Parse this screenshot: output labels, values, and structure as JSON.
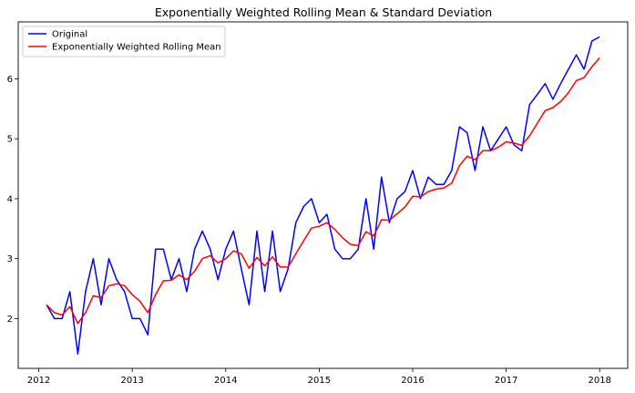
{
  "chart_data": {
    "type": "line",
    "title": "Exponentially Weighted Rolling Mean & Standard Deviation",
    "xlabel": "",
    "ylabel": "",
    "xlim": [
      2011.78,
      2018.3
    ],
    "ylim": [
      1.17,
      6.95
    ],
    "x_ticks": [
      {
        "value": 2012,
        "label": "2012"
      },
      {
        "value": 2013,
        "label": "2013"
      },
      {
        "value": 2014,
        "label": "2014"
      },
      {
        "value": 2015,
        "label": "2015"
      },
      {
        "value": 2016,
        "label": "2016"
      },
      {
        "value": 2017,
        "label": "2017"
      },
      {
        "value": 2018,
        "label": "2018"
      }
    ],
    "y_ticks": [
      {
        "value": 2,
        "label": "2"
      },
      {
        "value": 3,
        "label": "3"
      },
      {
        "value": 4,
        "label": "4"
      },
      {
        "value": 5,
        "label": "5"
      },
      {
        "value": 6,
        "label": "6"
      }
    ],
    "grid": false,
    "legend": {
      "position": "top-left"
    },
    "x": [
      2012.083,
      2012.167,
      2012.25,
      2012.333,
      2012.417,
      2012.5,
      2012.583,
      2012.667,
      2012.75,
      2012.833,
      2012.917,
      2013.0,
      2013.083,
      2013.167,
      2013.25,
      2013.333,
      2013.417,
      2013.5,
      2013.583,
      2013.667,
      2013.75,
      2013.833,
      2013.917,
      2014.0,
      2014.083,
      2014.167,
      2014.25,
      2014.333,
      2014.417,
      2014.5,
      2014.583,
      2014.667,
      2014.75,
      2014.833,
      2014.917,
      2015.0,
      2015.083,
      2015.167,
      2015.25,
      2015.333,
      2015.417,
      2015.5,
      2015.583,
      2015.667,
      2015.75,
      2015.833,
      2015.917,
      2016.0,
      2016.083,
      2016.167,
      2016.25,
      2016.333,
      2016.417,
      2016.5,
      2016.583,
      2016.667,
      2016.75,
      2016.833,
      2016.917,
      2017.0,
      2017.083,
      2017.167,
      2017.25,
      2017.333,
      2017.417,
      2017.5,
      2017.583,
      2017.667,
      2017.75,
      2017.833,
      2017.917,
      2018.0
    ],
    "series": [
      {
        "name": "Original",
        "color": "#0000ff",
        "values": [
          2.23,
          2.0,
          2.0,
          2.45,
          1.41,
          2.45,
          3.0,
          2.23,
          3.0,
          2.65,
          2.45,
          2.0,
          2.0,
          1.73,
          3.16,
          3.16,
          2.65,
          3.0,
          2.45,
          3.16,
          3.46,
          3.16,
          2.65,
          3.16,
          3.46,
          2.83,
          2.23,
          3.46,
          2.45,
          3.46,
          2.45,
          2.83,
          3.6,
          3.87,
          4.0,
          3.6,
          3.74,
          3.16,
          3.0,
          3.0,
          3.16,
          4.0,
          3.16,
          4.36,
          3.6,
          4.0,
          4.12,
          4.47,
          4.0,
          4.36,
          4.24,
          4.24,
          4.47,
          5.2,
          5.1,
          4.47,
          5.2,
          4.8,
          5.0,
          5.2,
          4.9,
          4.8,
          5.57,
          5.74,
          5.92,
          5.66,
          5.92,
          6.16,
          6.4,
          6.16,
          6.63,
          6.7
        ]
      },
      {
        "name": "Exponentially Weighted Rolling Mean",
        "color": "#ff0000",
        "values": [
          2.23,
          2.1,
          2.06,
          2.2,
          1.92,
          2.1,
          2.38,
          2.35,
          2.55,
          2.58,
          2.55,
          2.4,
          2.29,
          2.1,
          2.4,
          2.63,
          2.64,
          2.73,
          2.65,
          2.79,
          3.0,
          3.05,
          2.93,
          3.0,
          3.13,
          3.08,
          2.84,
          3.02,
          2.88,
          3.03,
          2.86,
          2.86,
          3.08,
          3.3,
          3.51,
          3.54,
          3.6,
          3.49,
          3.35,
          3.24,
          3.22,
          3.45,
          3.38,
          3.65,
          3.64,
          3.75,
          3.86,
          4.04,
          4.03,
          4.12,
          4.16,
          4.18,
          4.26,
          4.55,
          4.71,
          4.65,
          4.8,
          4.8,
          4.86,
          4.95,
          4.93,
          4.89,
          5.05,
          5.26,
          5.47,
          5.52,
          5.62,
          5.77,
          5.97,
          6.02,
          6.2,
          6.35
        ]
      }
    ]
  }
}
